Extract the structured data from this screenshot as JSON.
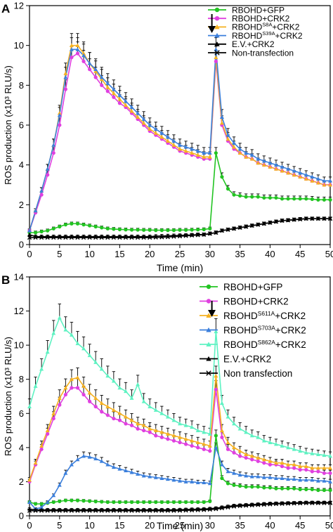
{
  "chart_data": [
    {
      "panel": "A",
      "type": "line",
      "xlabel": "Time (min)",
      "ylabel": "ROS production (x10³ RLU/s)",
      "xlim": [
        0,
        50
      ],
      "ylim": [
        0,
        12
      ],
      "xticks": [
        0,
        5,
        10,
        15,
        20,
        25,
        30,
        35,
        40,
        45,
        50
      ],
      "yticks": [
        0,
        2,
        4,
        6,
        8,
        10,
        12
      ],
      "grid": false,
      "legend_position": "top-right",
      "annotation": "arrow at x = 31",
      "x": [
        0,
        1,
        2,
        3,
        4,
        5,
        6,
        7,
        8,
        9,
        10,
        11,
        12,
        13,
        14,
        15,
        16,
        17,
        18,
        19,
        20,
        21,
        22,
        23,
        24,
        25,
        26,
        27,
        28,
        29,
        30,
        31,
        32,
        33,
        34,
        35,
        36,
        37,
        38,
        39,
        40,
        41,
        42,
        43,
        44,
        45,
        46,
        47,
        48,
        49,
        50
      ],
      "series": [
        {
          "name": "RBOHD+GFP",
          "base": "RBOHD+GFP",
          "sup": "",
          "tail": "",
          "color": "#22c422",
          "marker": "circle",
          "values": [
            0.6,
            0.6,
            0.65,
            0.7,
            0.8,
            0.9,
            1.0,
            1.05,
            1.05,
            1.0,
            0.95,
            0.9,
            0.85,
            0.8,
            0.78,
            0.76,
            0.75,
            0.74,
            0.74,
            0.73,
            0.73,
            0.72,
            0.72,
            0.72,
            0.72,
            0.73,
            0.73,
            0.74,
            0.75,
            0.76,
            0.8,
            4.6,
            3.4,
            2.8,
            2.5,
            2.45,
            2.4,
            2.4,
            2.4,
            2.35,
            2.35,
            2.35,
            2.3,
            2.3,
            2.3,
            2.3,
            2.3,
            2.28,
            2.25,
            2.25,
            2.25
          ]
        },
        {
          "name": "RBOHD+CRK2",
          "base": "RBOHD+CRK2",
          "sup": "",
          "tail": "",
          "color": "#e040e0",
          "marker": "circle",
          "values": [
            0.7,
            1.6,
            2.5,
            3.5,
            4.6,
            6.0,
            7.8,
            9.4,
            9.6,
            9.2,
            8.8,
            8.4,
            8.0,
            7.7,
            7.4,
            7.1,
            6.9,
            6.6,
            6.3,
            6.0,
            5.7,
            5.5,
            5.3,
            5.1,
            4.9,
            4.7,
            4.6,
            4.5,
            4.4,
            4.3,
            4.3,
            9.2,
            6.0,
            5.2,
            4.8,
            4.6,
            4.4,
            4.3,
            4.1,
            4.0,
            3.9,
            3.8,
            3.7,
            3.6,
            3.5,
            3.4,
            3.3,
            3.2,
            3.1,
            3.0,
            3.0
          ]
        },
        {
          "name": "RBOHDS8A+CRK2",
          "base": "RBOHD",
          "sup": "S8A",
          "tail": "+CRK2",
          "color": "#f5b121",
          "marker": "triangle",
          "values": [
            0.7,
            1.7,
            2.7,
            3.8,
            5.0,
            6.6,
            8.6,
            10.0,
            10.0,
            9.6,
            9.1,
            8.7,
            8.3,
            7.9,
            7.6,
            7.3,
            7.0,
            6.7,
            6.4,
            6.1,
            5.8,
            5.6,
            5.4,
            5.2,
            5.0,
            4.8,
            4.7,
            4.6,
            4.5,
            4.4,
            4.4,
            9.4,
            6.1,
            5.3,
            4.9,
            4.6,
            4.4,
            4.3,
            4.1,
            4.0,
            3.9,
            3.8,
            3.7,
            3.6,
            3.5,
            3.4,
            3.3,
            3.2,
            3.1,
            3.0,
            3.0
          ]
        },
        {
          "name": "RBOHDS39A+CRK2",
          "base": "RBOHD",
          "sup": "S39A",
          "tail": "+CRK2",
          "color": "#3b7fdc",
          "marker": "triangle",
          "values": [
            0.7,
            1.7,
            2.7,
            3.8,
            5.0,
            6.5,
            8.4,
            9.8,
            9.8,
            9.5,
            9.1,
            8.8,
            8.4,
            8.1,
            7.8,
            7.5,
            7.2,
            6.9,
            6.6,
            6.3,
            6.0,
            5.8,
            5.6,
            5.4,
            5.2,
            5.0,
            4.9,
            4.8,
            4.7,
            4.6,
            4.6,
            9.8,
            6.4,
            5.5,
            5.1,
            4.8,
            4.6,
            4.5,
            4.3,
            4.2,
            4.1,
            4.0,
            3.9,
            3.8,
            3.7,
            3.6,
            3.5,
            3.4,
            3.3,
            3.2,
            3.2
          ]
        },
        {
          "name": "E.V.+CRK2",
          "base": "E.V.+CRK2",
          "sup": "",
          "tail": "",
          "color": "#000000",
          "marker": "triangle",
          "values": [
            0.5,
            0.4,
            0.4,
            0.4,
            0.4,
            0.4,
            0.4,
            0.4,
            0.4,
            0.4,
            0.4,
            0.4,
            0.4,
            0.4,
            0.4,
            0.4,
            0.4,
            0.4,
            0.4,
            0.4,
            0.4,
            0.42,
            0.43,
            0.44,
            0.45,
            0.46,
            0.47,
            0.48,
            0.5,
            0.5,
            0.55,
            0.6,
            0.7,
            0.75,
            0.8,
            0.85,
            0.9,
            0.95,
            1.0,
            1.05,
            1.1,
            1.15,
            1.2,
            1.22,
            1.25,
            1.28,
            1.3,
            1.3,
            1.3,
            1.3,
            1.3
          ]
        },
        {
          "name": "Non-transfection",
          "base": "Non-transfection",
          "sup": "",
          "tail": "",
          "color": "#000000",
          "marker": "cross",
          "values": [
            0.35,
            0.35,
            0.35,
            0.35,
            0.35,
            0.35,
            0.35,
            0.35,
            0.35,
            0.35,
            0.35,
            0.35,
            0.35,
            0.35,
            0.35,
            0.35,
            0.35,
            0.35,
            0.35,
            0.35,
            0.35,
            0.36,
            0.37,
            0.38,
            0.4,
            0.42,
            0.44,
            0.46,
            0.48,
            0.5,
            0.55,
            0.6,
            0.7,
            0.75,
            0.8,
            0.85,
            0.9,
            0.95,
            1.0,
            1.05,
            1.1,
            1.15,
            1.2,
            1.22,
            1.25,
            1.27,
            1.3,
            1.3,
            1.3,
            1.3,
            1.3
          ]
        }
      ]
    },
    {
      "panel": "B",
      "type": "line",
      "xlabel": "Time (min)",
      "ylabel": "ROS production (x10³ RLU/s)",
      "xlim": [
        0,
        50
      ],
      "ylim": [
        0,
        14
      ],
      "xticks": [
        0,
        5,
        10,
        15,
        20,
        25,
        30,
        35,
        40,
        45,
        50
      ],
      "yticks": [
        0,
        2,
        4,
        6,
        8,
        10,
        12,
        14
      ],
      "grid": false,
      "legend_position": "top-right",
      "annotation": "arrow at x = 31",
      "x": [
        0,
        1,
        2,
        3,
        4,
        5,
        6,
        7,
        8,
        9,
        10,
        11,
        12,
        13,
        14,
        15,
        16,
        17,
        18,
        19,
        20,
        21,
        22,
        23,
        24,
        25,
        26,
        27,
        28,
        29,
        30,
        31,
        32,
        33,
        34,
        35,
        36,
        37,
        38,
        39,
        40,
        41,
        42,
        43,
        44,
        45,
        46,
        47,
        48,
        49,
        50
      ],
      "series": [
        {
          "name": "RBOHD+GFP",
          "base": "RBOHD+GFP",
          "sup": "",
          "tail": "",
          "color": "#22c422",
          "marker": "circle",
          "values": [
            0.8,
            0.7,
            0.7,
            0.75,
            0.8,
            0.85,
            0.9,
            0.9,
            0.9,
            0.88,
            0.86,
            0.84,
            0.82,
            0.8,
            0.8,
            0.8,
            0.8,
            0.8,
            0.8,
            0.8,
            0.8,
            0.8,
            0.8,
            0.8,
            0.8,
            0.8,
            0.8,
            0.8,
            0.8,
            0.8,
            0.85,
            4.7,
            2.2,
            1.9,
            1.8,
            1.75,
            1.7,
            1.7,
            1.7,
            1.65,
            1.65,
            1.6,
            1.6,
            1.6,
            1.6,
            1.55,
            1.55,
            1.55,
            1.5,
            1.5,
            1.5
          ]
        },
        {
          "name": "RBOHD+CRK2",
          "base": "RBOHD+CRK2",
          "sup": "",
          "tail": "",
          "color": "#e040e0",
          "marker": "circle",
          "values": [
            2.0,
            3.0,
            3.9,
            4.8,
            5.7,
            6.5,
            7.1,
            7.5,
            7.5,
            7.1,
            6.7,
            6.4,
            6.1,
            5.9,
            5.7,
            5.6,
            5.4,
            5.3,
            5.1,
            5.0,
            4.9,
            4.7,
            4.6,
            4.5,
            4.4,
            4.3,
            4.2,
            4.1,
            4.0,
            3.9,
            3.8,
            7.4,
            4.6,
            3.9,
            3.7,
            3.5,
            3.4,
            3.3,
            3.2,
            3.1,
            3.0,
            3.0,
            2.9,
            2.8,
            2.8,
            2.7,
            2.7,
            2.6,
            2.6,
            2.5,
            2.5
          ]
        },
        {
          "name": "RBOHDS611A+CRK2",
          "base": "RBOHD",
          "sup": "S611A",
          "tail": "+CRK2",
          "color": "#f5b121",
          "marker": "triangle",
          "values": [
            2.1,
            3.1,
            4.1,
            5.0,
            6.0,
            6.9,
            7.5,
            8.0,
            8.1,
            7.6,
            7.2,
            6.9,
            6.6,
            6.4,
            6.2,
            6.0,
            5.8,
            5.6,
            5.4,
            5.3,
            5.1,
            5.0,
            4.9,
            4.8,
            4.7,
            4.6,
            4.5,
            4.4,
            4.3,
            4.2,
            4.1,
            8.2,
            5.0,
            4.3,
            4.0,
            3.8,
            3.6,
            3.5,
            3.4,
            3.3,
            3.2,
            3.1,
            3.1,
            3.0,
            3.0,
            2.9,
            2.9,
            2.8,
            2.8,
            2.8,
            2.8
          ]
        },
        {
          "name": "RBOHDS703A+CRK2",
          "base": "RBOHD",
          "sup": "S703A",
          "tail": "+CRK2",
          "color": "#3b7fdc",
          "marker": "triangle",
          "values": [
            0.8,
            0.4,
            0.5,
            0.8,
            1.2,
            1.8,
            2.5,
            3.0,
            3.3,
            3.5,
            3.45,
            3.35,
            3.2,
            3.0,
            2.85,
            2.75,
            2.65,
            2.55,
            2.45,
            2.35,
            2.3,
            2.25,
            2.2,
            2.15,
            2.1,
            2.05,
            2.0,
            2.0,
            1.95,
            1.95,
            1.9,
            4.0,
            3.0,
            2.6,
            2.5,
            2.4,
            2.35,
            2.3,
            2.3,
            2.25,
            2.25,
            2.2,
            2.2,
            2.15,
            2.15,
            2.1,
            2.1,
            2.1,
            2.05,
            2.05,
            2.0
          ]
        },
        {
          "name": "RBOHDS862A+CRK2",
          "base": "RBOHD",
          "sup": "S862A",
          "tail": "+CRK2",
          "color": "#5ef2c2",
          "marker": "triangle",
          "values": [
            6.4,
            7.6,
            8.6,
            9.6,
            10.7,
            11.6,
            10.9,
            10.6,
            10.1,
            9.8,
            9.4,
            9.0,
            8.6,
            8.2,
            7.9,
            7.5,
            7.3,
            6.9,
            7.7,
            6.7,
            6.4,
            6.2,
            6.0,
            5.8,
            5.6,
            5.4,
            5.3,
            5.2,
            5.0,
            4.9,
            4.8,
            10.8,
            6.6,
            5.8,
            5.4,
            5.1,
            4.9,
            4.7,
            4.6,
            4.4,
            4.3,
            4.2,
            4.1,
            4.0,
            3.9,
            3.8,
            3.7,
            3.65,
            3.6,
            3.55,
            3.5
          ]
        },
        {
          "name": "E.V.+CRK2",
          "base": "E.V.+CRK2",
          "sup": "",
          "tail": "",
          "color": "#000000",
          "marker": "triangle",
          "values": [
            0.4,
            0.35,
            0.35,
            0.35,
            0.35,
            0.35,
            0.35,
            0.35,
            0.35,
            0.35,
            0.35,
            0.35,
            0.35,
            0.35,
            0.35,
            0.35,
            0.35,
            0.35,
            0.35,
            0.35,
            0.35,
            0.35,
            0.35,
            0.35,
            0.35,
            0.36,
            0.37,
            0.38,
            0.39,
            0.4,
            0.42,
            0.45,
            0.5,
            0.55,
            0.6,
            0.62,
            0.64,
            0.66,
            0.68,
            0.7,
            0.72,
            0.73,
            0.74,
            0.75,
            0.76,
            0.77,
            0.78,
            0.78,
            0.78,
            0.78,
            0.78
          ]
        },
        {
          "name": "Non transfection",
          "base": "Non transfection",
          "sup": "",
          "tail": "",
          "color": "#000000",
          "marker": "cross",
          "values": [
            0.3,
            0.3,
            0.3,
            0.3,
            0.3,
            0.3,
            0.3,
            0.3,
            0.3,
            0.3,
            0.3,
            0.3,
            0.3,
            0.3,
            0.3,
            0.3,
            0.3,
            0.3,
            0.3,
            0.3,
            0.3,
            0.3,
            0.3,
            0.3,
            0.3,
            0.31,
            0.32,
            0.33,
            0.34,
            0.35,
            0.37,
            0.4,
            0.45,
            0.5,
            0.55,
            0.58,
            0.6,
            0.62,
            0.64,
            0.66,
            0.68,
            0.7,
            0.71,
            0.72,
            0.73,
            0.74,
            0.75,
            0.75,
            0.75,
            0.75,
            0.75
          ]
        }
      ]
    }
  ]
}
